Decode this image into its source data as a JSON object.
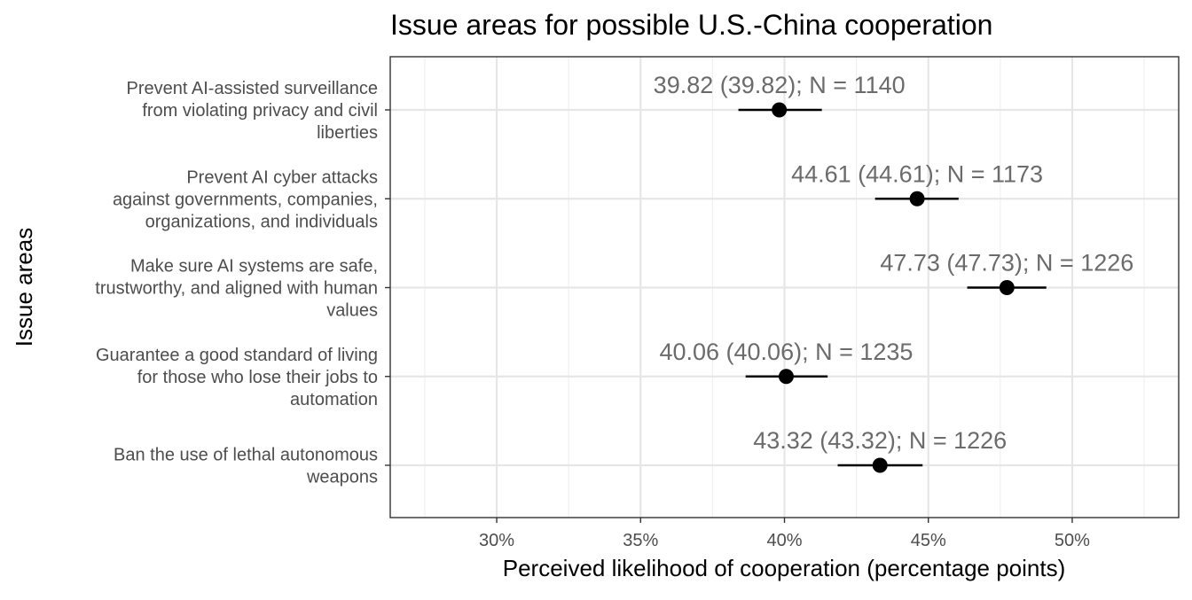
{
  "chart_data": {
    "type": "scatter",
    "title": "Issue areas for possible U.S.-China cooperation",
    "xlabel": "Perceived likelihood of cooperation (percentage points)",
    "ylabel": "Issue areas",
    "xlim": [
      26.3,
      53.7
    ],
    "xticks": [
      30,
      35,
      40,
      45,
      50
    ],
    "xtick_labels": [
      "30%",
      "35%",
      "40%",
      "45%",
      "50%"
    ],
    "grid": true,
    "categories": [
      [
        "Prevent AI-assisted surveillance",
        "from violating privacy and civil",
        "liberties"
      ],
      [
        "Prevent AI cyber attacks",
        "against governments, companies,",
        "organizations, and individuals"
      ],
      [
        "Make sure AI systems are safe,",
        "trustworthy, and aligned with human",
        "values"
      ],
      [
        "Guarantee a good standard of living",
        "for those who lose their jobs to",
        "automation"
      ],
      [
        "Ban the use of lethal autonomous",
        "weapons"
      ]
    ],
    "points": [
      {
        "estimate": 39.82,
        "ci_low": 38.4,
        "ci_high": 41.3,
        "label": "39.82 (39.82); N = 1140"
      },
      {
        "estimate": 44.61,
        "ci_low": 43.15,
        "ci_high": 46.05,
        "label": "44.61 (44.61); N = 1173"
      },
      {
        "estimate": 47.73,
        "ci_low": 46.35,
        "ci_high": 49.1,
        "label": "47.73 (47.73); N = 1226"
      },
      {
        "estimate": 40.06,
        "ci_low": 38.65,
        "ci_high": 41.5,
        "label": "40.06 (40.06); N = 1235"
      },
      {
        "estimate": 43.32,
        "ci_low": 41.85,
        "ci_high": 44.8,
        "label": "43.32 (43.32); N = 1226"
      }
    ],
    "colors": {
      "point": "#000000",
      "errorbar": "#000000",
      "point_label": "#6b6b6b",
      "grid_major": "#e6e6e6",
      "grid_minor": "#f0f0f0",
      "panel_border": "#333333",
      "axis_text": "#4d4d4d",
      "title": "#000000"
    }
  }
}
